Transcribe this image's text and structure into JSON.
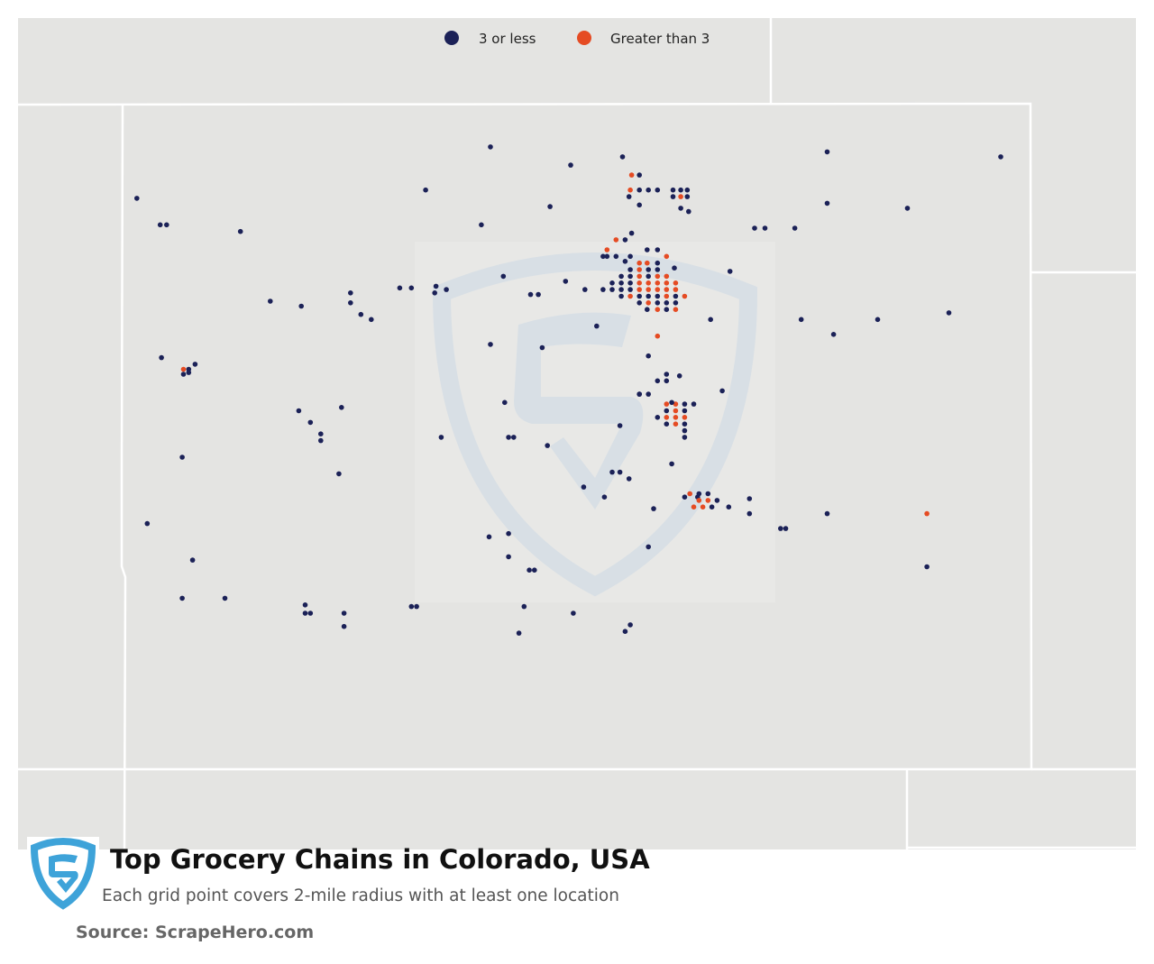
{
  "title": "Top Grocery Chains in Colorado, USA",
  "subtitle": "Each grid point covers 2-mile radius with at least one location",
  "source": "Source: ScrapeHero.com",
  "legend": [
    {
      "label": "3 or less",
      "color": "#1b2157"
    },
    {
      "label": "Greater than 3",
      "color": "#e54b23"
    }
  ],
  "colors": {
    "land": "#e4e4e2",
    "borders": "#ffffff",
    "watermark": "#d6dfe6",
    "logo": "#3ea3d9",
    "low": "#1b2157",
    "high": "#e54b23"
  },
  "icons": {
    "brand_logo": "scrapehero-shield-icon",
    "watermark": "scrapehero-watermark-icon"
  },
  "map_extent": {
    "lon": [
      -109.05,
      -102.04
    ],
    "lat": [
      36.99,
      41.0
    ]
  },
  "points": [
    {
      "lon": -106.21,
      "lat": 40.74,
      "cat": "low"
    },
    {
      "lon": -106.71,
      "lat": 40.48,
      "cat": "low"
    },
    {
      "lon": -108.94,
      "lat": 40.43,
      "cat": "low"
    },
    {
      "lon": -108.76,
      "lat": 40.27,
      "cat": "low"
    },
    {
      "lon": -108.71,
      "lat": 40.27,
      "cat": "low"
    },
    {
      "lon": -108.14,
      "lat": 40.23,
      "cat": "low"
    },
    {
      "lon": -106.28,
      "lat": 40.27,
      "cat": "low"
    },
    {
      "lon": -106.11,
      "lat": 39.96,
      "cat": "low"
    },
    {
      "lon": -106.64,
      "lat": 39.86,
      "cat": "low"
    },
    {
      "lon": -106.55,
      "lat": 39.88,
      "cat": "low"
    },
    {
      "lon": -106.63,
      "lat": 39.9,
      "cat": "low"
    },
    {
      "lon": -105.75,
      "lat": 40.38,
      "cat": "low"
    },
    {
      "lon": -105.59,
      "lat": 40.63,
      "cat": "low"
    },
    {
      "lon": -105.63,
      "lat": 39.93,
      "cat": "low"
    },
    {
      "lon": -105.84,
      "lat": 39.85,
      "cat": "low"
    },
    {
      "lon": -105.9,
      "lat": 39.85,
      "cat": "low"
    },
    {
      "lon": -105.48,
      "lat": 39.88,
      "cat": "low"
    },
    {
      "lon": -105.39,
      "lat": 39.66,
      "cat": "low"
    },
    {
      "lon": -105.81,
      "lat": 39.53,
      "cat": "low"
    },
    {
      "lon": -106.21,
      "lat": 39.55,
      "cat": "low"
    },
    {
      "lon": -107.29,
      "lat": 39.86,
      "cat": "low"
    },
    {
      "lon": -107.29,
      "lat": 39.8,
      "cat": "low"
    },
    {
      "lon": -107.21,
      "lat": 39.73,
      "cat": "low"
    },
    {
      "lon": -107.13,
      "lat": 39.7,
      "cat": "low"
    },
    {
      "lon": -107.67,
      "lat": 39.78,
      "cat": "low"
    },
    {
      "lon": -107.91,
      "lat": 39.81,
      "cat": "low"
    },
    {
      "lon": -106.82,
      "lat": 39.89,
      "cat": "low"
    },
    {
      "lon": -106.91,
      "lat": 39.89,
      "cat": "low"
    },
    {
      "lon": -108.75,
      "lat": 39.47,
      "cat": "low"
    },
    {
      "lon": -108.49,
      "lat": 39.43,
      "cat": "low"
    },
    {
      "lon": -108.58,
      "lat": 39.4,
      "cat": "high"
    },
    {
      "lon": -108.54,
      "lat": 39.4,
      "cat": "low"
    },
    {
      "lon": -108.54,
      "lat": 39.38,
      "cat": "low"
    },
    {
      "lon": -108.58,
      "lat": 39.37,
      "cat": "low"
    },
    {
      "lon": -107.69,
      "lat": 39.15,
      "cat": "low"
    },
    {
      "lon": -107.6,
      "lat": 39.08,
      "cat": "low"
    },
    {
      "lon": -107.36,
      "lat": 39.17,
      "cat": "low"
    },
    {
      "lon": -107.52,
      "lat": 39.01,
      "cat": "low"
    },
    {
      "lon": -107.52,
      "lat": 38.97,
      "cat": "low"
    },
    {
      "lon": -106.59,
      "lat": 38.99,
      "cat": "low"
    },
    {
      "lon": -106.1,
      "lat": 39.2,
      "cat": "low"
    },
    {
      "lon": -106.07,
      "lat": 38.99,
      "cat": "low"
    },
    {
      "lon": -106.03,
      "lat": 38.99,
      "cat": "low"
    },
    {
      "lon": -105.77,
      "lat": 38.94,
      "cat": "low"
    },
    {
      "lon": -108.59,
      "lat": 38.87,
      "cat": "low"
    },
    {
      "lon": -107.38,
      "lat": 38.77,
      "cat": "low"
    },
    {
      "lon": -108.86,
      "lat": 38.47,
      "cat": "low"
    },
    {
      "lon": -108.51,
      "lat": 38.25,
      "cat": "low"
    },
    {
      "lon": -108.59,
      "lat": 38.02,
      "cat": "low"
    },
    {
      "lon": -108.26,
      "lat": 38.02,
      "cat": "low"
    },
    {
      "lon": -107.64,
      "lat": 37.98,
      "cat": "low"
    },
    {
      "lon": -107.64,
      "lat": 37.93,
      "cat": "low"
    },
    {
      "lon": -107.6,
      "lat": 37.93,
      "cat": "low"
    },
    {
      "lon": -107.34,
      "lat": 37.93,
      "cat": "low"
    },
    {
      "lon": -107.34,
      "lat": 37.85,
      "cat": "low"
    },
    {
      "lon": -106.82,
      "lat": 37.97,
      "cat": "low"
    },
    {
      "lon": -106.78,
      "lat": 37.97,
      "cat": "low"
    },
    {
      "lon": -106.22,
      "lat": 38.39,
      "cat": "low"
    },
    {
      "lon": -106.07,
      "lat": 38.41,
      "cat": "low"
    },
    {
      "lon": -106.07,
      "lat": 38.27,
      "cat": "low"
    },
    {
      "lon": -105.91,
      "lat": 38.19,
      "cat": "low"
    },
    {
      "lon": -105.87,
      "lat": 38.19,
      "cat": "low"
    },
    {
      "lon": -105.95,
      "lat": 37.97,
      "cat": "low"
    },
    {
      "lon": -105.99,
      "lat": 37.81,
      "cat": "low"
    },
    {
      "lon": -105.57,
      "lat": 37.93,
      "cat": "low"
    },
    {
      "lon": -105.17,
      "lat": 37.82,
      "cat": "low"
    },
    {
      "lon": -105.13,
      "lat": 37.86,
      "cat": "low"
    },
    {
      "lon": -105.49,
      "lat": 38.69,
      "cat": "low"
    },
    {
      "lon": -105.33,
      "lat": 38.63,
      "cat": "low"
    },
    {
      "lon": -104.99,
      "lat": 38.33,
      "cat": "low"
    },
    {
      "lon": -104.95,
      "lat": 38.56,
      "cat": "low"
    },
    {
      "lon": -104.81,
      "lat": 38.83,
      "cat": "low"
    },
    {
      "lon": -104.71,
      "lat": 38.63,
      "cat": "low"
    },
    {
      "lon": -104.61,
      "lat": 38.63,
      "cat": "low"
    },
    {
      "lon": -104.21,
      "lat": 38.62,
      "cat": "low"
    },
    {
      "lon": -104.21,
      "lat": 38.53,
      "cat": "low"
    },
    {
      "lon": -103.97,
      "lat": 38.44,
      "cat": "low"
    },
    {
      "lon": -103.93,
      "lat": 38.44,
      "cat": "low"
    },
    {
      "lon": -103.61,
      "lat": 38.53,
      "cat": "low"
    },
    {
      "lon": -102.84,
      "lat": 38.53,
      "cat": "high"
    },
    {
      "lon": -102.84,
      "lat": 38.21,
      "cat": "low"
    },
    {
      "lon": -103.81,
      "lat": 39.7,
      "cat": "low"
    },
    {
      "lon": -103.56,
      "lat": 39.61,
      "cat": "low"
    },
    {
      "lon": -103.22,
      "lat": 39.7,
      "cat": "low"
    },
    {
      "lon": -102.67,
      "lat": 39.74,
      "cat": "low"
    },
    {
      "lon": -104.17,
      "lat": 40.25,
      "cat": "low"
    },
    {
      "lon": -104.09,
      "lat": 40.25,
      "cat": "low"
    },
    {
      "lon": -103.86,
      "lat": 40.25,
      "cat": "low"
    },
    {
      "lon": -103.61,
      "lat": 40.71,
      "cat": "low"
    },
    {
      "lon": -103.61,
      "lat": 40.4,
      "cat": "low"
    },
    {
      "lon": -102.99,
      "lat": 40.37,
      "cat": "low"
    },
    {
      "lon": -102.27,
      "lat": 40.68,
      "cat": "low"
    },
    {
      "lon": -104.79,
      "lat": 40.01,
      "cat": "low"
    },
    {
      "lon": -104.36,
      "lat": 39.99,
      "cat": "low"
    },
    {
      "lon": -104.68,
      "lat": 40.35,
      "cat": "low"
    },
    {
      "lon": -105.14,
      "lat": 40.44,
      "cat": "low"
    },
    {
      "lon": -105.19,
      "lat": 40.68,
      "cat": "low"
    },
    {
      "lon": -105.12,
      "lat": 40.57,
      "cat": "high"
    },
    {
      "lon": -105.06,
      "lat": 40.57,
      "cat": "low"
    },
    {
      "lon": -105.13,
      "lat": 40.48,
      "cat": "high"
    },
    {
      "lon": -105.06,
      "lat": 40.48,
      "cat": "low"
    },
    {
      "lon": -104.99,
      "lat": 40.48,
      "cat": "low"
    },
    {
      "lon": -104.92,
      "lat": 40.48,
      "cat": "low"
    },
    {
      "lon": -104.8,
      "lat": 40.48,
      "cat": "low"
    },
    {
      "lon": -104.74,
      "lat": 40.48,
      "cat": "low"
    },
    {
      "lon": -104.69,
      "lat": 40.48,
      "cat": "low"
    },
    {
      "lon": -104.8,
      "lat": 40.44,
      "cat": "low"
    },
    {
      "lon": -104.74,
      "lat": 40.44,
      "cat": "high"
    },
    {
      "lon": -104.69,
      "lat": 40.44,
      "cat": "low"
    },
    {
      "lon": -104.74,
      "lat": 40.37,
      "cat": "low"
    },
    {
      "lon": -105.06,
      "lat": 40.39,
      "cat": "low"
    },
    {
      "lon": -105.31,
      "lat": 40.12,
      "cat": "high"
    },
    {
      "lon": -105.31,
      "lat": 40.08,
      "cat": "low"
    },
    {
      "lon": -105.24,
      "lat": 40.08,
      "cat": "low"
    },
    {
      "lon": -105.13,
      "lat": 40.08,
      "cat": "low"
    },
    {
      "lon": -105.0,
      "lat": 40.12,
      "cat": "low"
    },
    {
      "lon": -104.92,
      "lat": 40.12,
      "cat": "low"
    },
    {
      "lon": -104.85,
      "lat": 40.08,
      "cat": "high"
    },
    {
      "lon": -105.24,
      "lat": 40.18,
      "cat": "high"
    },
    {
      "lon": -105.17,
      "lat": 40.18,
      "cat": "low"
    },
    {
      "lon": -105.12,
      "lat": 40.22,
      "cat": "low"
    },
    {
      "lon": -105.17,
      "lat": 40.05,
      "cat": "low"
    },
    {
      "lon": -105.34,
      "lat": 40.08,
      "cat": "low"
    },
    {
      "lon": -105.06,
      "lat": 40.04,
      "cat": "high"
    },
    {
      "lon": -105.0,
      "lat": 40.04,
      "cat": "high"
    },
    {
      "lon": -104.92,
      "lat": 40.04,
      "cat": "low"
    },
    {
      "lon": -105.13,
      "lat": 40.0,
      "cat": "low"
    },
    {
      "lon": -105.06,
      "lat": 40.0,
      "cat": "high"
    },
    {
      "lon": -104.99,
      "lat": 40.0,
      "cat": "low"
    },
    {
      "lon": -104.92,
      "lat": 40.0,
      "cat": "low"
    },
    {
      "lon": -105.2,
      "lat": 39.96,
      "cat": "low"
    },
    {
      "lon": -105.13,
      "lat": 39.96,
      "cat": "low"
    },
    {
      "lon": -105.06,
      "lat": 39.96,
      "cat": "high"
    },
    {
      "lon": -104.99,
      "lat": 39.96,
      "cat": "low"
    },
    {
      "lon": -104.92,
      "lat": 39.96,
      "cat": "high"
    },
    {
      "lon": -104.85,
      "lat": 39.96,
      "cat": "high"
    },
    {
      "lon": -105.27,
      "lat": 39.92,
      "cat": "low"
    },
    {
      "lon": -105.2,
      "lat": 39.92,
      "cat": "low"
    },
    {
      "lon": -105.13,
      "lat": 39.92,
      "cat": "low"
    },
    {
      "lon": -105.06,
      "lat": 39.92,
      "cat": "high"
    },
    {
      "lon": -104.99,
      "lat": 39.92,
      "cat": "high"
    },
    {
      "lon": -104.92,
      "lat": 39.92,
      "cat": "high"
    },
    {
      "lon": -104.85,
      "lat": 39.92,
      "cat": "high"
    },
    {
      "lon": -104.78,
      "lat": 39.92,
      "cat": "high"
    },
    {
      "lon": -105.34,
      "lat": 39.88,
      "cat": "low"
    },
    {
      "lon": -105.27,
      "lat": 39.88,
      "cat": "low"
    },
    {
      "lon": -105.2,
      "lat": 39.88,
      "cat": "low"
    },
    {
      "lon": -105.13,
      "lat": 39.88,
      "cat": "low"
    },
    {
      "lon": -105.06,
      "lat": 39.88,
      "cat": "high"
    },
    {
      "lon": -104.99,
      "lat": 39.88,
      "cat": "high"
    },
    {
      "lon": -104.92,
      "lat": 39.88,
      "cat": "high"
    },
    {
      "lon": -104.85,
      "lat": 39.88,
      "cat": "high"
    },
    {
      "lon": -104.78,
      "lat": 39.88,
      "cat": "high"
    },
    {
      "lon": -105.13,
      "lat": 39.84,
      "cat": "high"
    },
    {
      "lon": -105.06,
      "lat": 39.84,
      "cat": "low"
    },
    {
      "lon": -104.99,
      "lat": 39.84,
      "cat": "low"
    },
    {
      "lon": -104.92,
      "lat": 39.84,
      "cat": "low"
    },
    {
      "lon": -104.85,
      "lat": 39.84,
      "cat": "high"
    },
    {
      "lon": -104.78,
      "lat": 39.84,
      "cat": "low"
    },
    {
      "lon": -104.71,
      "lat": 39.84,
      "cat": "high"
    },
    {
      "lon": -105.2,
      "lat": 39.84,
      "cat": "low"
    },
    {
      "lon": -105.06,
      "lat": 39.8,
      "cat": "low"
    },
    {
      "lon": -104.99,
      "lat": 39.8,
      "cat": "high"
    },
    {
      "lon": -104.92,
      "lat": 39.8,
      "cat": "low"
    },
    {
      "lon": -104.85,
      "lat": 39.8,
      "cat": "low"
    },
    {
      "lon": -104.78,
      "lat": 39.8,
      "cat": "low"
    },
    {
      "lon": -105.0,
      "lat": 39.76,
      "cat": "low"
    },
    {
      "lon": -104.92,
      "lat": 39.76,
      "cat": "high"
    },
    {
      "lon": -104.85,
      "lat": 39.76,
      "cat": "low"
    },
    {
      "lon": -104.78,
      "lat": 39.76,
      "cat": "high"
    },
    {
      "lon": -104.92,
      "lat": 39.6,
      "cat": "high"
    },
    {
      "lon": -104.99,
      "lat": 39.48,
      "cat": "low"
    },
    {
      "lon": -104.51,
      "lat": 39.7,
      "cat": "low"
    },
    {
      "lon": -104.75,
      "lat": 39.36,
      "cat": "low"
    },
    {
      "lon": -104.92,
      "lat": 39.33,
      "cat": "low"
    },
    {
      "lon": -104.85,
      "lat": 39.33,
      "cat": "low"
    },
    {
      "lon": -105.06,
      "lat": 39.25,
      "cat": "low"
    },
    {
      "lon": -104.99,
      "lat": 39.25,
      "cat": "low"
    },
    {
      "lon": -104.85,
      "lat": 39.19,
      "cat": "high"
    },
    {
      "lon": -104.78,
      "lat": 39.19,
      "cat": "high"
    },
    {
      "lon": -104.71,
      "lat": 39.19,
      "cat": "low"
    },
    {
      "lon": -104.85,
      "lat": 39.15,
      "cat": "low"
    },
    {
      "lon": -104.78,
      "lat": 39.15,
      "cat": "high"
    },
    {
      "lon": -104.71,
      "lat": 39.15,
      "cat": "low"
    },
    {
      "lon": -104.92,
      "lat": 39.11,
      "cat": "low"
    },
    {
      "lon": -104.85,
      "lat": 39.11,
      "cat": "high"
    },
    {
      "lon": -104.78,
      "lat": 39.11,
      "cat": "high"
    },
    {
      "lon": -104.71,
      "lat": 39.11,
      "cat": "high"
    },
    {
      "lon": -104.85,
      "lat": 39.07,
      "cat": "low"
    },
    {
      "lon": -104.78,
      "lat": 39.07,
      "cat": "high"
    },
    {
      "lon": -104.71,
      "lat": 39.07,
      "cat": "low"
    },
    {
      "lon": -104.71,
      "lat": 39.03,
      "cat": "low"
    },
    {
      "lon": -104.71,
      "lat": 38.99,
      "cat": "low"
    },
    {
      "lon": -104.64,
      "lat": 39.19,
      "cat": "low"
    },
    {
      "lon": -104.85,
      "lat": 39.37,
      "cat": "low"
    },
    {
      "lon": -105.06,
      "lat": 39.25,
      "cat": "low"
    },
    {
      "lon": -105.21,
      "lat": 39.06,
      "cat": "low"
    },
    {
      "lon": -104.42,
      "lat": 39.27,
      "cat": "low"
    },
    {
      "lon": -105.27,
      "lat": 38.78,
      "cat": "low"
    },
    {
      "lon": -105.21,
      "lat": 38.78,
      "cat": "low"
    },
    {
      "lon": -105.14,
      "lat": 38.74,
      "cat": "low"
    },
    {
      "lon": -104.67,
      "lat": 38.65,
      "cat": "high"
    },
    {
      "lon": -104.6,
      "lat": 38.65,
      "cat": "low"
    },
    {
      "lon": -104.53,
      "lat": 38.65,
      "cat": "low"
    },
    {
      "lon": -104.6,
      "lat": 38.61,
      "cat": "high"
    },
    {
      "lon": -104.53,
      "lat": 38.61,
      "cat": "high"
    },
    {
      "lon": -104.46,
      "lat": 38.61,
      "cat": "low"
    },
    {
      "lon": -104.64,
      "lat": 38.57,
      "cat": "high"
    },
    {
      "lon": -104.57,
      "lat": 38.57,
      "cat": "high"
    },
    {
      "lon": -104.5,
      "lat": 38.57,
      "cat": "low"
    },
    {
      "lon": -104.37,
      "lat": 38.57,
      "cat": "low"
    },
    {
      "lon": -104.81,
      "lat": 39.2,
      "cat": "low"
    }
  ]
}
